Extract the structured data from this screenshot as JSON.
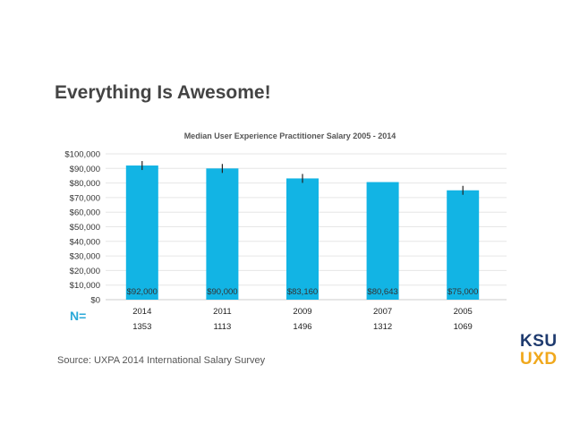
{
  "slide": {
    "title": "Everything Is Awesome!",
    "n_label": "N=",
    "source": "Source: UXPA 2014 International Salary Survey"
  },
  "logo": {
    "line1": "KSU",
    "line2": "UXD"
  },
  "colors": {
    "bar": "#12b4e4",
    "grid": "#e6e6e6",
    "n_label": "#2aa8d8"
  },
  "chart_data": {
    "type": "bar",
    "title": "Median User Experience Practitioner Salary  2005 - 2014",
    "categories": [
      "2014",
      "2011",
      "2009",
      "2007",
      "2005"
    ],
    "values": [
      92000,
      90000,
      83160,
      80643,
      75000
    ],
    "value_labels": [
      "$92,000",
      "$90,000",
      "$83,160",
      "$80,643",
      "$75,000"
    ],
    "n_values": [
      "1353",
      "1113",
      "1496",
      "1312",
      "1069"
    ],
    "error_bars": [
      true,
      true,
      true,
      false,
      true
    ],
    "ylim": [
      0,
      100000
    ],
    "yticks": [
      0,
      10000,
      20000,
      30000,
      40000,
      50000,
      60000,
      70000,
      80000,
      90000,
      100000
    ],
    "ytick_labels": [
      "$0",
      "$10,000",
      "$20,000",
      "$30,000",
      "$40,000",
      "$50,000",
      "$60,000",
      "$70,000",
      "$80,000",
      "$90,000",
      "$100,000"
    ],
    "xlabel": "",
    "ylabel": "",
    "grid": true
  }
}
